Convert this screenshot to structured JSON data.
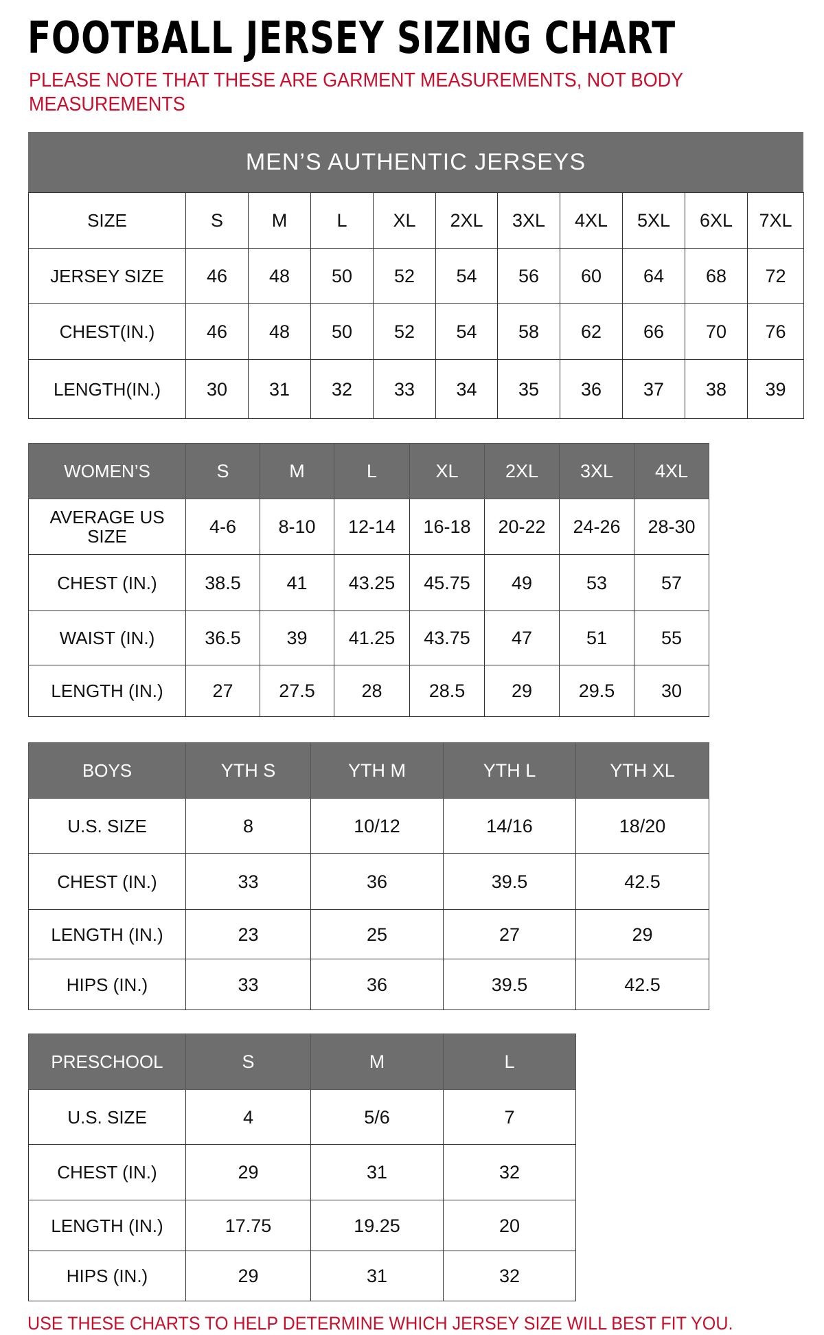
{
  "title": "FOOTBALL JERSEY SIZING CHART",
  "note": "PLEASE NOTE THAT THESE ARE GARMENT MEASUREMENTS, NOT BODY MEASUREMENTS",
  "footer": "USE THESE CHARTS TO HELP DETERMINE WHICH JERSEY SIZE WILL BEST FIT YOU.",
  "colors": {
    "header_bg": "#6e6e6e",
    "note_red": "#c8102e"
  },
  "mens": {
    "banner": "MEN’S AUTHENTIC JERSEYS",
    "rows": [
      [
        "SIZE",
        "S",
        "M",
        "L",
        "XL",
        "2XL",
        "3XL",
        "4XL",
        "5XL",
        "6XL",
        "7XL"
      ],
      [
        "JERSEY SIZE",
        "46",
        "48",
        "50",
        "52",
        "54",
        "56",
        "60",
        "64",
        "68",
        "72"
      ],
      [
        "CHEST(IN.)",
        "46",
        "48",
        "50",
        "52",
        "54",
        "58",
        "62",
        "66",
        "70",
        "76"
      ],
      [
        "LENGTH(IN.)",
        "30",
        "31",
        "32",
        "33",
        "34",
        "35",
        "36",
        "37",
        "38",
        "39"
      ]
    ]
  },
  "womens": {
    "rows": [
      [
        "WOMEN’S",
        "S",
        "M",
        "L",
        "XL",
        "2XL",
        "3XL",
        "4XL"
      ],
      [
        "AVERAGE US SIZE",
        "4-6",
        "8-10",
        "12-14",
        "16-18",
        "20-22",
        "24-26",
        "28-30"
      ],
      [
        "CHEST (IN.)",
        "38.5",
        "41",
        "43.25",
        "45.75",
        "49",
        "53",
        "57"
      ],
      [
        "WAIST (IN.)",
        "36.5",
        "39",
        "41.25",
        "43.75",
        "47",
        "51",
        "55"
      ],
      [
        "LENGTH (IN.)",
        "27",
        "27.5",
        "28",
        "28.5",
        "29",
        "29.5",
        "30"
      ]
    ]
  },
  "boys": {
    "rows": [
      [
        "BOYS",
        "YTH S",
        "YTH M",
        "YTH L",
        "YTH XL"
      ],
      [
        "U.S. SIZE",
        "8",
        "10/12",
        "14/16",
        "18/20"
      ],
      [
        "CHEST (IN.)",
        "33",
        "36",
        "39.5",
        "42.5"
      ],
      [
        "LENGTH (IN.)",
        "23",
        "25",
        "27",
        "29"
      ],
      [
        "HIPS (IN.)",
        "33",
        "36",
        "39.5",
        "42.5"
      ]
    ]
  },
  "preschool": {
    "rows": [
      [
        "PRESCHOOL",
        "S",
        "M",
        "L"
      ],
      [
        "U.S. SIZE",
        "4",
        "5/6",
        "7"
      ],
      [
        "CHEST (IN.)",
        "29",
        "31",
        "32"
      ],
      [
        "LENGTH (IN.)",
        "17.75",
        "19.25",
        "20"
      ],
      [
        "HIPS (IN.)",
        "29",
        "31",
        "32"
      ]
    ]
  }
}
